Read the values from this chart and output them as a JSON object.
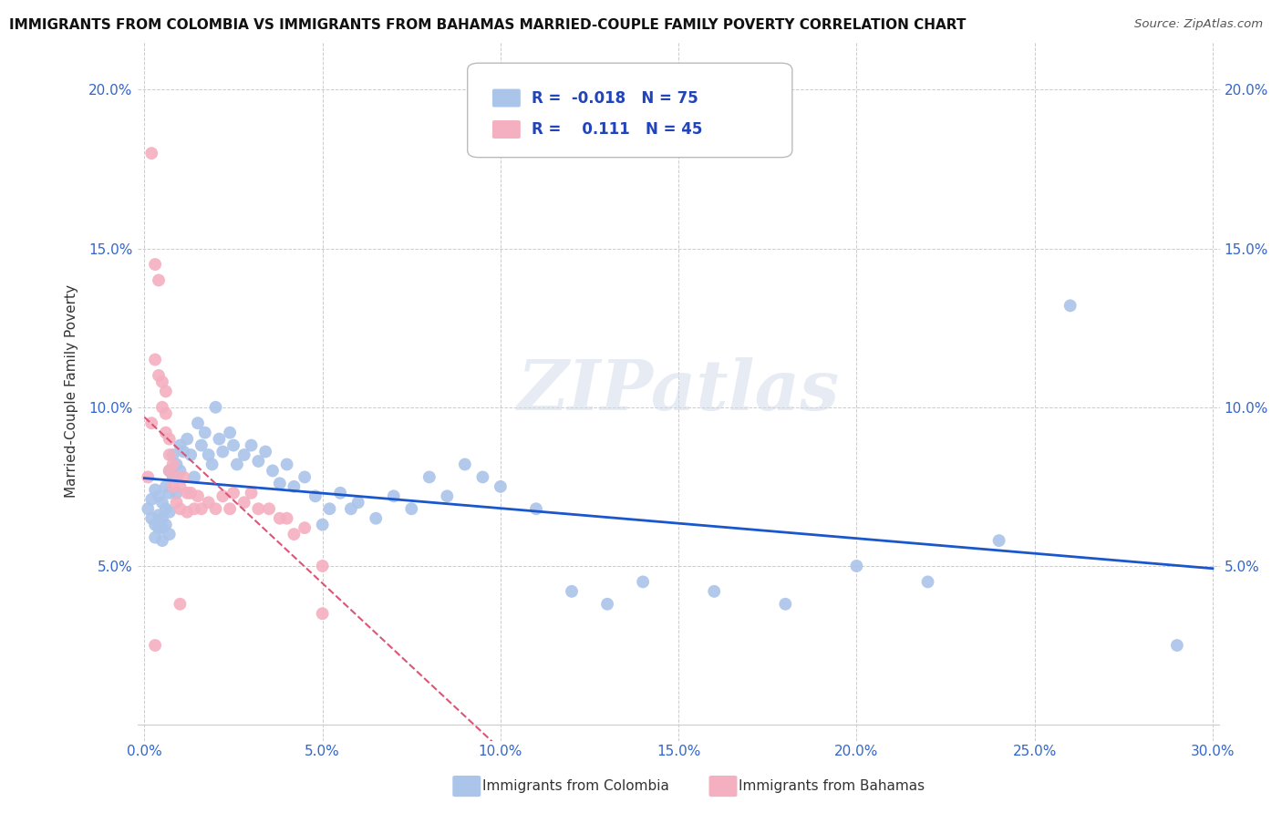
{
  "title": "IMMIGRANTS FROM COLOMBIA VS IMMIGRANTS FROM BAHAMAS MARRIED-COUPLE FAMILY POVERTY CORRELATION CHART",
  "source": "Source: ZipAtlas.com",
  "ylabel": "Married-Couple Family Poverty",
  "xlabel_colombia": "Immigrants from Colombia",
  "xlabel_bahamas": "Immigrants from Bahamas",
  "xlim": [
    -0.002,
    0.302
  ],
  "ylim": [
    -0.005,
    0.215
  ],
  "xticks": [
    0.0,
    0.05,
    0.1,
    0.15,
    0.2,
    0.25,
    0.3
  ],
  "yticks": [
    0.05,
    0.1,
    0.15,
    0.2
  ],
  "colombia_color": "#aac4ea",
  "bahamas_color": "#f4afc0",
  "colombia_line_color": "#1a56cc",
  "bahamas_line_color": "#dd5577",
  "R_colombia": -0.018,
  "N_colombia": 75,
  "R_bahamas": 0.111,
  "N_bahamas": 45,
  "watermark": "ZIPatlas",
  "background_color": "#ffffff",
  "grid_color": "#cccccc",
  "colombia_points_x": [
    0.001,
    0.002,
    0.002,
    0.003,
    0.003,
    0.003,
    0.004,
    0.004,
    0.004,
    0.005,
    0.005,
    0.005,
    0.005,
    0.006,
    0.006,
    0.006,
    0.007,
    0.007,
    0.007,
    0.007,
    0.008,
    0.008,
    0.009,
    0.009,
    0.01,
    0.01,
    0.011,
    0.012,
    0.013,
    0.014,
    0.015,
    0.016,
    0.017,
    0.018,
    0.019,
    0.02,
    0.021,
    0.022,
    0.024,
    0.025,
    0.026,
    0.028,
    0.03,
    0.032,
    0.034,
    0.036,
    0.038,
    0.04,
    0.042,
    0.045,
    0.048,
    0.05,
    0.052,
    0.055,
    0.058,
    0.06,
    0.065,
    0.07,
    0.075,
    0.08,
    0.085,
    0.09,
    0.095,
    0.1,
    0.11,
    0.12,
    0.13,
    0.14,
    0.16,
    0.18,
    0.2,
    0.22,
    0.24,
    0.26,
    0.29
  ],
  "colombia_points_y": [
    0.068,
    0.071,
    0.065,
    0.074,
    0.063,
    0.059,
    0.072,
    0.066,
    0.062,
    0.07,
    0.065,
    0.062,
    0.058,
    0.075,
    0.068,
    0.063,
    0.08,
    0.073,
    0.067,
    0.06,
    0.085,
    0.078,
    0.082,
    0.073,
    0.088,
    0.08,
    0.086,
    0.09,
    0.085,
    0.078,
    0.095,
    0.088,
    0.092,
    0.085,
    0.082,
    0.1,
    0.09,
    0.086,
    0.092,
    0.088,
    0.082,
    0.085,
    0.088,
    0.083,
    0.086,
    0.08,
    0.076,
    0.082,
    0.075,
    0.078,
    0.072,
    0.063,
    0.068,
    0.073,
    0.068,
    0.07,
    0.065,
    0.072,
    0.068,
    0.078,
    0.072,
    0.082,
    0.078,
    0.075,
    0.068,
    0.042,
    0.038,
    0.045,
    0.042,
    0.038,
    0.05,
    0.045,
    0.058,
    0.132,
    0.025
  ],
  "bahamas_points_x": [
    0.001,
    0.002,
    0.002,
    0.003,
    0.003,
    0.004,
    0.004,
    0.005,
    0.005,
    0.006,
    0.006,
    0.006,
    0.007,
    0.007,
    0.007,
    0.008,
    0.008,
    0.009,
    0.009,
    0.01,
    0.01,
    0.011,
    0.012,
    0.012,
    0.013,
    0.014,
    0.015,
    0.016,
    0.018,
    0.02,
    0.022,
    0.024,
    0.025,
    0.028,
    0.03,
    0.032,
    0.035,
    0.038,
    0.04,
    0.042,
    0.045,
    0.05,
    0.003,
    0.01,
    0.05
  ],
  "bahamas_points_y": [
    0.078,
    0.18,
    0.095,
    0.145,
    0.115,
    0.14,
    0.11,
    0.108,
    0.1,
    0.105,
    0.098,
    0.092,
    0.09,
    0.085,
    0.08,
    0.082,
    0.075,
    0.078,
    0.07,
    0.075,
    0.068,
    0.078,
    0.073,
    0.067,
    0.073,
    0.068,
    0.072,
    0.068,
    0.07,
    0.068,
    0.072,
    0.068,
    0.073,
    0.07,
    0.073,
    0.068,
    0.068,
    0.065,
    0.065,
    0.06,
    0.062,
    0.05,
    0.025,
    0.038,
    0.035
  ]
}
